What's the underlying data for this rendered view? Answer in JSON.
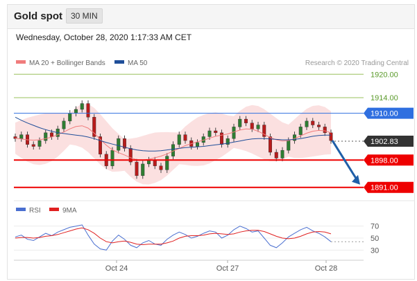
{
  "header": {
    "title": "Gold spot",
    "timeframe": "30 MIN"
  },
  "datetime": "Wednesday, October 28, 2020 1:17:33 AM CET",
  "colors": {
    "ma20": "#f07c7c",
    "ma50": "#1f4e99",
    "rsi": "#4a6fd0",
    "ma9": "#e02020",
    "support": "#ee0000",
    "resistance": "#99c15c",
    "pivot": "#2f6fe0",
    "current": "#333333",
    "arrow": "#1f5fa8"
  },
  "legend": {
    "ma20": "MA 20 + Bollinger Bands",
    "ma50": "MA 50",
    "rsi": "RSI",
    "ma9": "9MA"
  },
  "credit": "Research © 2020 Trading Central",
  "chart_data": {
    "type": "line",
    "instrument": "Gold spot",
    "timeframe": "30 MIN",
    "ylim": [
      1889,
      1922
    ],
    "x_tick_labels": [
      "Oct 24",
      "Oct 27",
      "Oct 28"
    ],
    "price_close": [
      1903.5,
      1904.5,
      1902.0,
      1901.5,
      1903.0,
      1905.0,
      1904.0,
      1906.0,
      1908.0,
      1910.0,
      1911.0,
      1912.5,
      1909.0,
      1904.0,
      1899.5,
      1896.5,
      1900.5,
      1903.5,
      1901.0,
      1897.5,
      1894.0,
      1897.0,
      1898.0,
      1896.5,
      1895.5,
      1899.0,
      1902.0,
      1904.5,
      1903.0,
      1901.5,
      1902.5,
      1904.0,
      1905.5,
      1905.0,
      1902.0,
      1903.5,
      1906.5,
      1908.5,
      1907.5,
      1906.0,
      1907.0,
      1904.0,
      1900.0,
      1898.5,
      1900.5,
      1903.0,
      1904.5,
      1906.5,
      1908.0,
      1907.0,
      1906.5,
      1905.0,
      1903.0
    ],
    "ma20": [
      1903.6,
      1903.4,
      1903.2,
      1903.1,
      1903.2,
      1903.5,
      1903.9,
      1904.5,
      1905.2,
      1906.0,
      1906.6,
      1906.8,
      1906.2,
      1904.9,
      1903.3,
      1901.8,
      1900.6,
      1899.9,
      1899.3,
      1898.6,
      1898.1,
      1898.0,
      1898.2,
      1898.6,
      1899.0,
      1899.6,
      1900.3,
      1901.0,
      1901.7,
      1902.2,
      1902.7,
      1903.1,
      1903.6,
      1904.1,
      1904.4,
      1904.7,
      1905.2,
      1905.7,
      1906.0,
      1905.9,
      1905.4,
      1904.6,
      1903.8,
      1903.2,
      1902.9,
      1903.0,
      1903.5,
      1904.2,
      1904.9,
      1905.4,
      1905.6,
      1905.5,
      1905.0
    ],
    "ma50": [
      1909.0,
      1908.2,
      1907.5,
      1906.9,
      1906.3,
      1905.8,
      1905.4,
      1905.0,
      1904.8,
      1904.6,
      1904.4,
      1904.2,
      1903.9,
      1903.5,
      1903.0,
      1902.5,
      1902.1,
      1901.7,
      1901.3,
      1900.9,
      1900.6,
      1900.4,
      1900.3,
      1900.3,
      1900.4,
      1900.6,
      1900.8,
      1901.0,
      1901.2,
      1901.3,
      1901.4,
      1901.5,
      1901.7,
      1901.9,
      1902.1,
      1902.3,
      1902.6,
      1902.9,
      1903.2,
      1903.4,
      1903.5,
      1903.5,
      1903.4,
      1903.3,
      1903.2,
      1903.2,
      1903.3,
      1903.5,
      1903.8,
      1904.1,
      1904.3,
      1904.4,
      1904.4
    ],
    "rsi": [
      52,
      55,
      48,
      46,
      52,
      58,
      54,
      60,
      64,
      68,
      70,
      72,
      55,
      40,
      32,
      30,
      45,
      55,
      48,
      38,
      34,
      42,
      46,
      40,
      38,
      48,
      55,
      60,
      56,
      50,
      53,
      58,
      62,
      60,
      50,
      55,
      64,
      70,
      66,
      60,
      62,
      50,
      38,
      34,
      42,
      52,
      58,
      64,
      68,
      62,
      58,
      52,
      44
    ],
    "ma9": [
      50,
      51,
      51,
      50,
      51,
      53,
      54,
      56,
      59,
      62,
      65,
      67,
      64,
      58,
      50,
      44,
      42,
      44,
      45,
      43,
      40,
      39,
      40,
      40,
      40,
      42,
      45,
      50,
      53,
      54,
      54,
      55,
      57,
      58,
      57,
      56,
      57,
      60,
      62,
      63,
      63,
      61,
      57,
      53,
      50,
      49,
      50,
      53,
      57,
      60,
      61,
      60,
      57
    ],
    "levels": [
      {
        "value": 1920.0,
        "label": "1920.00",
        "kind": "resistance"
      },
      {
        "value": 1914.0,
        "label": "1914.00",
        "kind": "resistance"
      },
      {
        "value": 1910.0,
        "label": "1910.00",
        "kind": "pivot"
      },
      {
        "value": 1902.83,
        "label": "1902.83",
        "kind": "current"
      },
      {
        "value": 1898.0,
        "label": "1898.00",
        "kind": "support"
      },
      {
        "value": 1891.0,
        "label": "1891.00",
        "kind": "support"
      }
    ],
    "rsi_levels": [
      {
        "value": 70,
        "label": "70"
      },
      {
        "value": 50,
        "label": "50"
      },
      {
        "value": 30,
        "label": "30"
      }
    ],
    "projection": {
      "from": 1903.0,
      "to": 1891.0
    }
  }
}
